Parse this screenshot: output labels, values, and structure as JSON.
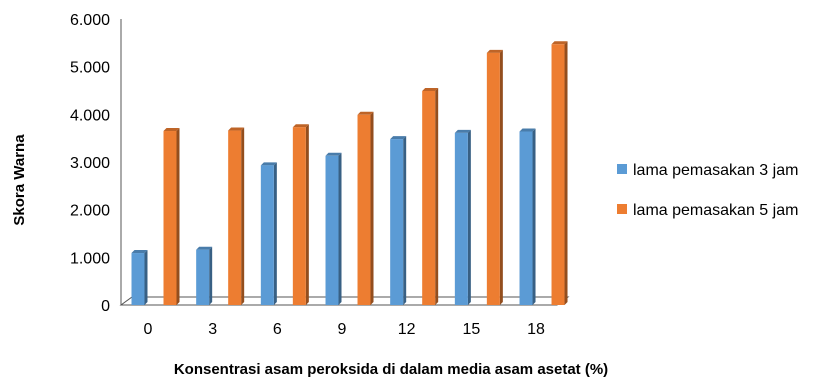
{
  "chart_data": {
    "type": "bar",
    "categories": [
      "0",
      "3",
      "6",
      "9",
      "12",
      "15",
      "18"
    ],
    "series": [
      {
        "name": "lama pemasakan 3 jam",
        "color": "#5b9bd5",
        "values": [
          1.09,
          1.16,
          2.93,
          3.13,
          3.48,
          3.61,
          3.64
        ]
      },
      {
        "name": "lama pemasakan 5 jam",
        "color": "#ed7d31",
        "values": [
          3.65,
          3.66,
          3.73,
          3.99,
          4.49,
          5.29,
          5.47
        ]
      }
    ],
    "ylim": [
      0,
      6
    ],
    "yticks": [
      "0",
      "1.000",
      "2.000",
      "3.000",
      "4.000",
      "5.000",
      "6.000"
    ],
    "xlabel": "Konsentrasi asam peroksida di dalam media asam asetat (%)",
    "ylabel": "Skora Warna",
    "legend_position": "right",
    "grid": false,
    "style": "3d-bar"
  }
}
